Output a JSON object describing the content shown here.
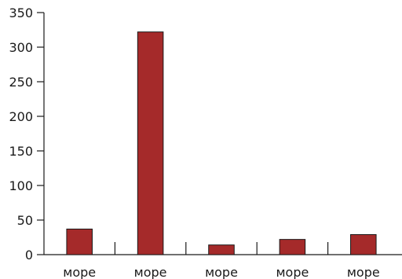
{
  "chart_data": {
    "type": "bar",
    "categories": [
      "море",
      "море",
      "море",
      "море",
      "море"
    ],
    "values": [
      37,
      322,
      14,
      22,
      29
    ],
    "title": "",
    "xlabel": "",
    "ylabel": "",
    "ylim": [
      0,
      350
    ],
    "yticks": [
      0,
      50,
      100,
      150,
      200,
      250,
      300,
      350
    ],
    "ytick_labels": [
      "0",
      "50",
      "100",
      "150",
      "200",
      "250",
      "300",
      "350"
    ],
    "grid": false,
    "legend": "none",
    "bar_color": "#a52a2a"
  }
}
